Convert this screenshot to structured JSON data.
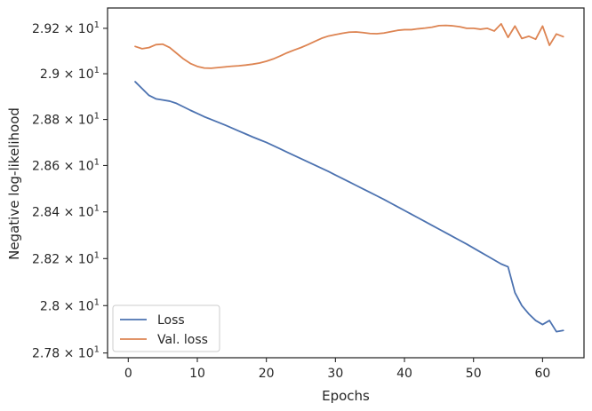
{
  "chart_data": {
    "type": "line",
    "xlabel": "Epochs",
    "ylabel": "Negative log-likelihood",
    "xlim": [
      -3,
      66
    ],
    "ylim": [
      27.78,
      29.29
    ],
    "yscale": "log",
    "grid": false,
    "legend_position": "lower-left",
    "x_ticks": [
      0,
      10,
      20,
      30,
      40,
      50,
      60
    ],
    "y_ticks": [
      {
        "value": 27.8,
        "mantissa": "2.78",
        "exponent": "1"
      },
      {
        "value": 28.0,
        "mantissa": "2.8",
        "exponent": "1"
      },
      {
        "value": 28.2,
        "mantissa": "2.82",
        "exponent": "1"
      },
      {
        "value": 28.4,
        "mantissa": "2.84",
        "exponent": "1"
      },
      {
        "value": 28.6,
        "mantissa": "2.86",
        "exponent": "1"
      },
      {
        "value": 28.8,
        "mantissa": "2.88",
        "exponent": "1"
      },
      {
        "value": 29.0,
        "mantissa": "2.9",
        "exponent": "1"
      },
      {
        "value": 29.2,
        "mantissa": "2.92",
        "exponent": "1"
      }
    ],
    "times_symbol": "×",
    "base": "10",
    "series": [
      {
        "name": "Loss",
        "color": "#4c72b0",
        "x": [
          1,
          2,
          3,
          4,
          5,
          6,
          7,
          8,
          9,
          10,
          11,
          12,
          13,
          14,
          15,
          16,
          17,
          18,
          19,
          20,
          21,
          22,
          23,
          24,
          25,
          26,
          27,
          28,
          29,
          30,
          31,
          32,
          33,
          34,
          35,
          36,
          37,
          38,
          39,
          40,
          41,
          42,
          43,
          44,
          45,
          46,
          47,
          48,
          49,
          50,
          51,
          52,
          53,
          54,
          55,
          56,
          57,
          58,
          59,
          60,
          61,
          62,
          63
        ],
        "y": [
          28.965,
          28.935,
          28.905,
          28.89,
          28.885,
          28.88,
          28.87,
          28.855,
          28.84,
          28.826,
          28.812,
          28.8,
          28.788,
          28.776,
          28.763,
          28.75,
          28.737,
          28.724,
          28.712,
          28.7,
          28.686,
          28.672,
          28.658,
          28.644,
          28.63,
          28.616,
          28.602,
          28.588,
          28.574,
          28.559,
          28.544,
          28.529,
          28.514,
          28.499,
          28.484,
          28.469,
          28.454,
          28.438,
          28.422,
          28.406,
          28.39,
          28.374,
          28.358,
          28.342,
          28.326,
          28.31,
          28.294,
          28.278,
          28.262,
          28.245,
          28.228,
          28.211,
          28.194,
          28.177,
          28.165,
          28.055,
          28.0,
          27.965,
          27.937,
          27.92,
          27.937,
          27.89,
          27.895
        ]
      },
      {
        "name": "Val. loss",
        "color": "#dd8452",
        "x": [
          1,
          2,
          3,
          4,
          5,
          6,
          7,
          8,
          9,
          10,
          11,
          12,
          13,
          14,
          15,
          16,
          17,
          18,
          19,
          20,
          21,
          22,
          23,
          24,
          25,
          26,
          27,
          28,
          29,
          30,
          31,
          32,
          33,
          34,
          35,
          36,
          37,
          38,
          39,
          40,
          41,
          42,
          43,
          44,
          45,
          46,
          47,
          48,
          49,
          50,
          51,
          52,
          53,
          54,
          55,
          56,
          57,
          58,
          59,
          60,
          61,
          62,
          63
        ],
        "y": [
          29.12,
          29.11,
          29.115,
          29.128,
          29.13,
          29.115,
          29.09,
          29.065,
          29.045,
          29.032,
          29.025,
          29.024,
          29.027,
          29.03,
          29.033,
          29.035,
          29.038,
          29.042,
          29.047,
          29.055,
          29.065,
          29.078,
          29.092,
          29.104,
          29.115,
          29.128,
          29.142,
          29.156,
          29.166,
          29.172,
          29.178,
          29.183,
          29.184,
          29.181,
          29.177,
          29.176,
          29.179,
          29.185,
          29.191,
          29.194,
          29.194,
          29.198,
          29.201,
          29.205,
          29.212,
          29.213,
          29.211,
          29.207,
          29.2,
          29.2,
          29.196,
          29.2,
          29.188,
          29.22,
          29.16,
          29.21,
          29.155,
          29.165,
          29.152,
          29.21,
          29.125,
          29.175,
          29.163
        ]
      }
    ]
  }
}
